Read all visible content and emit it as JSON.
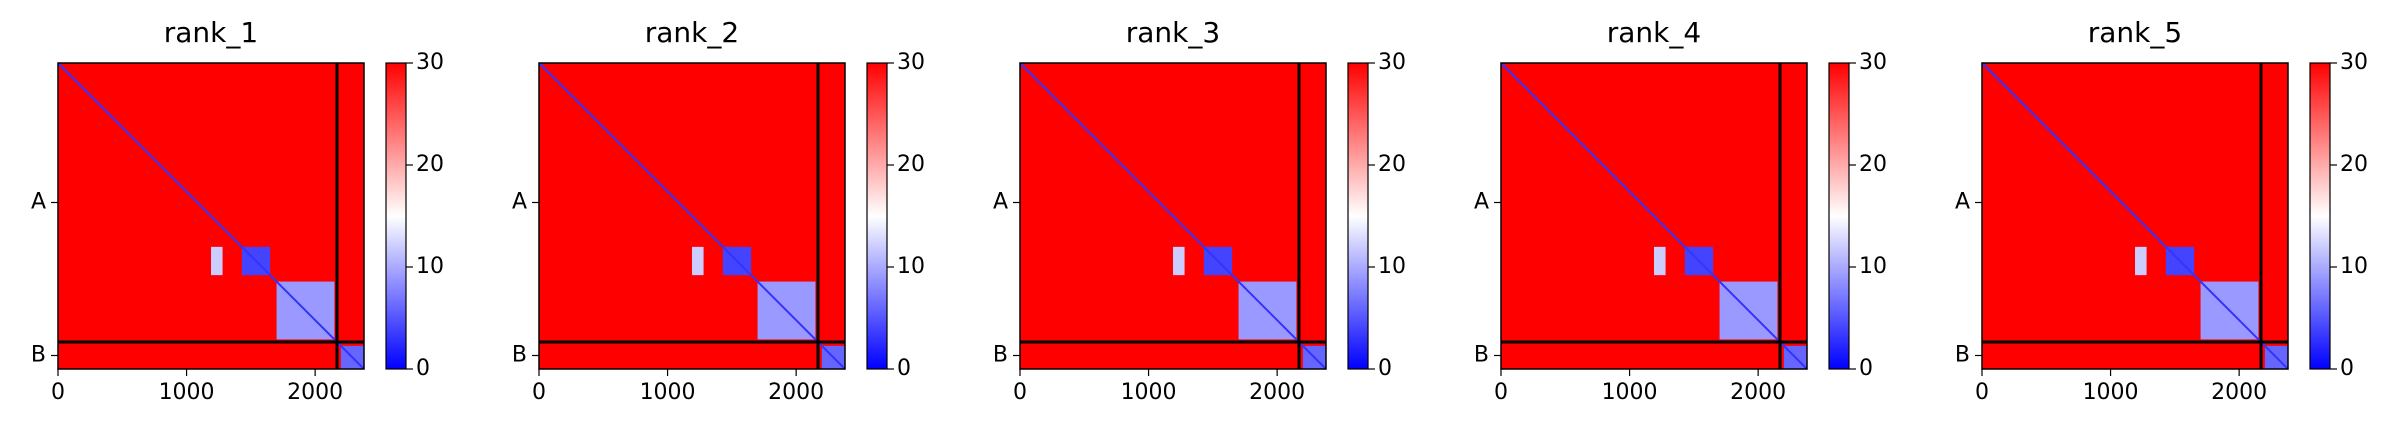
{
  "chart_data": [
    {
      "type": "heatmap",
      "title": "rank_1",
      "xlim": [
        0,
        2380
      ],
      "ylim": [
        2380,
        0
      ],
      "xticks": [
        0,
        1000,
        2000
      ],
      "yticks": [
        {
          "value": 1085,
          "label": "A"
        },
        {
          "value": 2275,
          "label": "B"
        }
      ],
      "clim": [
        0,
        30
      ],
      "cticks": [
        0,
        10,
        20,
        30
      ],
      "cmap": "bwr",
      "background_value": 30,
      "diagonal_value": 3,
      "chain_breaks": [
        2170
      ],
      "regions": [
        {
          "x": [
            1430,
            1650
          ],
          "y": [
            1430,
            1650
          ],
          "value": 4
        },
        {
          "x": [
            1700,
            2150
          ],
          "y": [
            1700,
            2150
          ],
          "value": 9
        },
        {
          "x": [
            1190,
            1280
          ],
          "y": [
            1430,
            1650
          ],
          "value": 12
        },
        {
          "x": [
            2200,
            2380
          ],
          "y": [
            2200,
            2380
          ],
          "value": 6
        }
      ]
    },
    {
      "type": "heatmap",
      "title": "rank_2",
      "xlim": [
        0,
        2380
      ],
      "ylim": [
        2380,
        0
      ],
      "xticks": [
        0,
        1000,
        2000
      ],
      "yticks": [
        {
          "value": 1085,
          "label": "A"
        },
        {
          "value": 2275,
          "label": "B"
        }
      ],
      "clim": [
        0,
        30
      ],
      "cticks": [
        0,
        10,
        20,
        30
      ],
      "cmap": "bwr",
      "background_value": 30,
      "diagonal_value": 3,
      "chain_breaks": [
        2170
      ],
      "regions": [
        {
          "x": [
            1430,
            1650
          ],
          "y": [
            1430,
            1650
          ],
          "value": 4
        },
        {
          "x": [
            1700,
            2150
          ],
          "y": [
            1700,
            2150
          ],
          "value": 9
        },
        {
          "x": [
            1190,
            1280
          ],
          "y": [
            1430,
            1650
          ],
          "value": 12
        },
        {
          "x": [
            2200,
            2380
          ],
          "y": [
            2200,
            2380
          ],
          "value": 6
        }
      ]
    },
    {
      "type": "heatmap",
      "title": "rank_3",
      "xlim": [
        0,
        2380
      ],
      "ylim": [
        2380,
        0
      ],
      "xticks": [
        0,
        1000,
        2000
      ],
      "yticks": [
        {
          "value": 1085,
          "label": "A"
        },
        {
          "value": 2275,
          "label": "B"
        }
      ],
      "clim": [
        0,
        30
      ],
      "cticks": [
        0,
        10,
        20,
        30
      ],
      "cmap": "bwr",
      "background_value": 30,
      "diagonal_value": 3,
      "chain_breaks": [
        2170
      ],
      "regions": [
        {
          "x": [
            1430,
            1650
          ],
          "y": [
            1430,
            1650
          ],
          "value": 4
        },
        {
          "x": [
            1700,
            2150
          ],
          "y": [
            1700,
            2150
          ],
          "value": 9
        },
        {
          "x": [
            1190,
            1280
          ],
          "y": [
            1430,
            1650
          ],
          "value": 12
        },
        {
          "x": [
            2200,
            2380
          ],
          "y": [
            2200,
            2380
          ],
          "value": 6
        }
      ]
    },
    {
      "type": "heatmap",
      "title": "rank_4",
      "xlim": [
        0,
        2380
      ],
      "ylim": [
        2380,
        0
      ],
      "xticks": [
        0,
        1000,
        2000
      ],
      "yticks": [
        {
          "value": 1085,
          "label": "A"
        },
        {
          "value": 2275,
          "label": "B"
        }
      ],
      "clim": [
        0,
        30
      ],
      "cticks": [
        0,
        10,
        20,
        30
      ],
      "cmap": "bwr",
      "background_value": 30,
      "diagonal_value": 3,
      "chain_breaks": [
        2170
      ],
      "regions": [
        {
          "x": [
            1430,
            1650
          ],
          "y": [
            1430,
            1650
          ],
          "value": 4
        },
        {
          "x": [
            1700,
            2150
          ],
          "y": [
            1700,
            2150
          ],
          "value": 9
        },
        {
          "x": [
            1190,
            1280
          ],
          "y": [
            1430,
            1650
          ],
          "value": 12
        },
        {
          "x": [
            2200,
            2380
          ],
          "y": [
            2200,
            2380
          ],
          "value": 6
        }
      ]
    },
    {
      "type": "heatmap",
      "title": "rank_5",
      "xlim": [
        0,
        2380
      ],
      "ylim": [
        2380,
        0
      ],
      "xticks": [
        0,
        1000,
        2000
      ],
      "yticks": [
        {
          "value": 1085,
          "label": "A"
        },
        {
          "value": 2275,
          "label": "B"
        }
      ],
      "clim": [
        0,
        30
      ],
      "cticks": [
        0,
        10,
        20,
        30
      ],
      "cmap": "bwr",
      "background_value": 30,
      "diagonal_value": 3,
      "chain_breaks": [
        2170
      ],
      "regions": [
        {
          "x": [
            1430,
            1650
          ],
          "y": [
            1430,
            1650
          ],
          "value": 4
        },
        {
          "x": [
            1700,
            2150
          ],
          "y": [
            1700,
            2150
          ],
          "value": 9
        },
        {
          "x": [
            1190,
            1280
          ],
          "y": [
            1430,
            1650
          ],
          "value": 12
        },
        {
          "x": [
            2200,
            2380
          ],
          "y": [
            2200,
            2380
          ],
          "value": 6
        }
      ]
    }
  ]
}
